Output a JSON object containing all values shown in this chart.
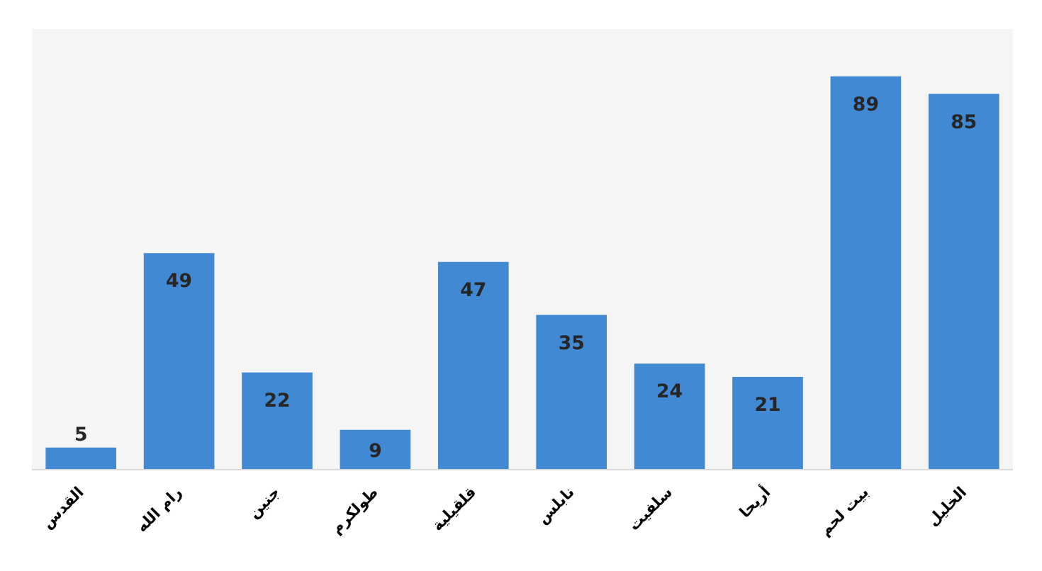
{
  "chart_data": {
    "type": "bar",
    "categories": [
      "القدس",
      "رام الله",
      "جنين",
      "طولكرم",
      "قلقيلية",
      "نابلس",
      "سلفيت",
      "أريحا",
      "بيت لحم",
      "الخليل"
    ],
    "values": [
      5,
      49,
      22,
      9,
      47,
      35,
      24,
      21,
      89,
      85
    ],
    "color": "#4289d4",
    "data_labels": true
  }
}
